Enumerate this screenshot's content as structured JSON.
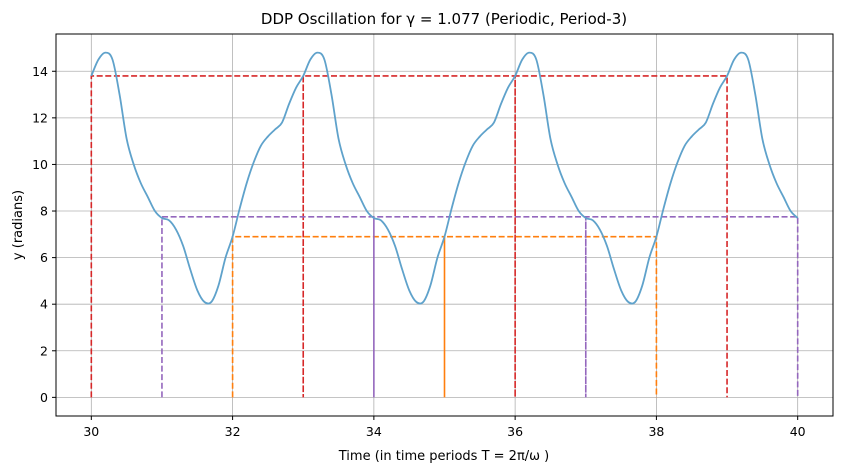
{
  "chart_data": {
    "type": "line",
    "title": "DDP Oscillation for γ = 1.077 (Periodic, Period-3)",
    "xlabel": "Time (in time periods T = 2π/ω )",
    "ylabel": "y (radians)",
    "xlim": [
      29.5,
      40.5
    ],
    "ylim": [
      -0.8,
      15.6
    ],
    "xticks": [
      30,
      32,
      34,
      36,
      38,
      40
    ],
    "yticks": [
      0,
      2,
      4,
      6,
      8,
      10,
      12,
      14
    ],
    "grid": true,
    "series": [
      {
        "color": "#5fa2cb",
        "style": "solid",
        "x": [
          30.0,
          30.1,
          30.2,
          30.3,
          30.4,
          30.5,
          30.6,
          30.7,
          30.8,
          30.9,
          31.0,
          31.1,
          31.2,
          31.3,
          31.4,
          31.5,
          31.6,
          31.7,
          31.8,
          31.9,
          32.0,
          32.1,
          32.2,
          32.3,
          32.4,
          32.5,
          32.6,
          32.7,
          32.8,
          32.9,
          33.0
        ],
        "y": [
          13.8,
          14.5,
          14.8,
          14.5,
          13.0,
          11.1,
          10.0,
          9.2,
          8.6,
          8.0,
          7.7,
          7.6,
          7.2,
          6.5,
          5.5,
          4.6,
          4.1,
          4.1,
          4.8,
          6.0,
          6.9,
          8.1,
          9.2,
          10.1,
          10.8,
          11.2,
          11.5,
          11.8,
          12.6,
          13.3,
          13.8
        ]
      },
      {
        "color": "#d62728",
        "style": "dashed",
        "x": [
          30,
          30,
          33,
          33,
          33,
          36,
          36,
          36,
          39,
          39
        ],
        "y": [
          0,
          13.8,
          13.8,
          0,
          13.8,
          13.8,
          0,
          13.8,
          13.8,
          0
        ]
      },
      {
        "color": "#ff7f0e",
        "style": "dashed",
        "x": [
          32,
          32,
          35,
          35,
          35,
          38,
          38
        ],
        "y": [
          0,
          6.9,
          6.9,
          0,
          6.9,
          6.9,
          0
        ]
      },
      {
        "color": "#9467bd",
        "style": "dashed",
        "x": [
          31,
          31,
          34,
          34,
          34,
          37,
          37,
          37,
          40,
          40
        ],
        "y": [
          0,
          7.75,
          7.75,
          0,
          7.75,
          7.75,
          0,
          7.75,
          7.75,
          0
        ]
      }
    ]
  }
}
